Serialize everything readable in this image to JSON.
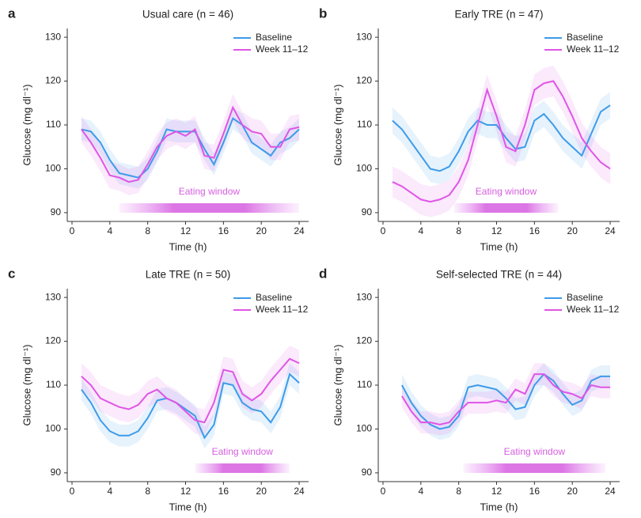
{
  "chart_data": [
    {
      "type": "line",
      "panel": "a",
      "title": "Usual care (n = 46)",
      "x_label": "Time (h)",
      "y_label": "Glucose (mg dl⁻¹)",
      "x": [
        1,
        2,
        3,
        4,
        5,
        6,
        7,
        8,
        9,
        10,
        11,
        12,
        13,
        14,
        15,
        16,
        17,
        18,
        19,
        20,
        21,
        22,
        23,
        24
      ],
      "series": [
        {
          "name": "Baseline",
          "color": "#3d9be9",
          "error": 2.5,
          "values": [
            109,
            108.5,
            106,
            102,
            99,
            98.5,
            98,
            100,
            104,
            109,
            108.5,
            108.5,
            108.5,
            104.5,
            101,
            106,
            111.5,
            110,
            106,
            104.5,
            103,
            106,
            107,
            109
          ]
        },
        {
          "name": "Week 11–12",
          "color": "#df55e6",
          "error": 3,
          "values": [
            109,
            106,
            102.5,
            98.5,
            98,
            97,
            97.5,
            101,
            105,
            107.5,
            108.5,
            107.5,
            109,
            103,
            102.5,
            108,
            114,
            110,
            108.5,
            108,
            105,
            105,
            109,
            109.5
          ]
        }
      ],
      "eating_window": {
        "label": "Eating window",
        "start": 5,
        "end": 24
      },
      "xlim": [
        -0.5,
        25
      ],
      "ylim": [
        88,
        132
      ],
      "xticks": [
        0,
        4,
        8,
        12,
        16,
        20,
        24
      ],
      "yticks": [
        90,
        100,
        110,
        120,
        130
      ],
      "legend": "upper right"
    },
    {
      "type": "line",
      "panel": "b",
      "title": "Early TRE (n = 47)",
      "x_label": "Time (h)",
      "y_label": "Glucose (mg dl⁻¹)",
      "x": [
        1,
        2,
        3,
        4,
        5,
        6,
        7,
        8,
        9,
        10,
        11,
        12,
        13,
        14,
        15,
        16,
        17,
        18,
        19,
        20,
        21,
        22,
        23,
        24
      ],
      "series": [
        {
          "name": "Baseline",
          "color": "#3d9be9",
          "error": 3,
          "values": [
            111,
            109,
            106,
            103,
            100,
            99.5,
            100.5,
            104,
            108.5,
            111,
            110,
            110,
            107,
            104.5,
            105,
            111,
            112.5,
            110,
            107,
            105,
            103,
            108,
            113,
            114.5
          ]
        },
        {
          "name": "Week 11–12",
          "color": "#df55e6",
          "error": 3.5,
          "values": [
            97,
            96,
            94.5,
            93,
            92.5,
            93,
            94,
            97,
            102,
            110,
            118,
            112,
            105,
            104,
            110,
            118,
            119.5,
            120,
            116.5,
            112,
            107,
            104,
            101.5,
            100
          ]
        }
      ],
      "eating_window": {
        "label": "Eating window",
        "start": 7.5,
        "end": 18.5
      },
      "xlim": [
        -0.5,
        25
      ],
      "ylim": [
        88,
        132
      ],
      "xticks": [
        0,
        4,
        8,
        12,
        16,
        20,
        24
      ],
      "yticks": [
        90,
        100,
        110,
        120,
        130
      ],
      "legend": "upper right"
    },
    {
      "type": "line",
      "panel": "c",
      "title": "Late TRE (n = 50)",
      "x_label": "Time (h)",
      "y_label": "Glucose (mg dl⁻¹)",
      "x": [
        1,
        2,
        3,
        4,
        5,
        6,
        7,
        8,
        9,
        10,
        11,
        12,
        13,
        14,
        15,
        16,
        17,
        18,
        19,
        20,
        21,
        22,
        23,
        24
      ],
      "series": [
        {
          "name": "Baseline",
          "color": "#3d9be9",
          "error": 2.5,
          "values": [
            109,
            106,
            102,
            99.5,
            98.5,
            98.5,
            99.5,
            102.5,
            106.5,
            107,
            106,
            104.5,
            103,
            98,
            101,
            110.5,
            110,
            106,
            104.5,
            104,
            101.5,
            105,
            112.5,
            110.5
          ]
        },
        {
          "name": "Week 11–12",
          "color": "#df55e6",
          "error": 3,
          "values": [
            112,
            110,
            107,
            106,
            105,
            104.5,
            105.5,
            108,
            109,
            107,
            106,
            104,
            102,
            101.5,
            106,
            113.5,
            113,
            108,
            106.5,
            108,
            111,
            113.5,
            116,
            115
          ]
        }
      ],
      "eating_window": {
        "label": "Eating window",
        "start": 13,
        "end": 23
      },
      "xlim": [
        -0.5,
        25
      ],
      "ylim": [
        88,
        132
      ],
      "xticks": [
        0,
        4,
        8,
        12,
        16,
        20,
        24
      ],
      "yticks": [
        90,
        100,
        110,
        120,
        130
      ],
      "legend": "upper right"
    },
    {
      "type": "line",
      "panel": "d",
      "title": "Self-selected TRE (n = 44)",
      "x_label": "Time (h)",
      "y_label": "Glucose (mg dl⁻¹)",
      "x": [
        2,
        3,
        4,
        5,
        6,
        7,
        8,
        9,
        10,
        11,
        12,
        13,
        14,
        15,
        16,
        17,
        18,
        19,
        20,
        21,
        22,
        23,
        24
      ],
      "series": [
        {
          "name": "Baseline",
          "color": "#3d9be9",
          "error": 2.5,
          "values": [
            110,
            106,
            103,
            101,
            100,
            100.5,
            103,
            109.5,
            110,
            109.5,
            109,
            107,
            104.5,
            105,
            110,
            112.5,
            111,
            108,
            105.5,
            106.5,
            111,
            112,
            112
          ]
        },
        {
          "name": "Week 11–12",
          "color": "#df55e6",
          "error": 2.5,
          "values": [
            107.5,
            104,
            101.5,
            101.5,
            101,
            101.5,
            104,
            106,
            106,
            106,
            106.5,
            106,
            109,
            108,
            112.5,
            112.5,
            110,
            108.5,
            108,
            107,
            110,
            109.5,
            109.5
          ]
        }
      ],
      "eating_window": {
        "label": "Eating window",
        "start": 8.5,
        "end": 23.5
      },
      "xlim": [
        -0.5,
        25
      ],
      "ylim": [
        88,
        132
      ],
      "xticks": [
        0,
        4,
        8,
        12,
        16,
        20,
        24
      ],
      "yticks": [
        90,
        100,
        110,
        120,
        130
      ],
      "legend": "upper right"
    }
  ]
}
